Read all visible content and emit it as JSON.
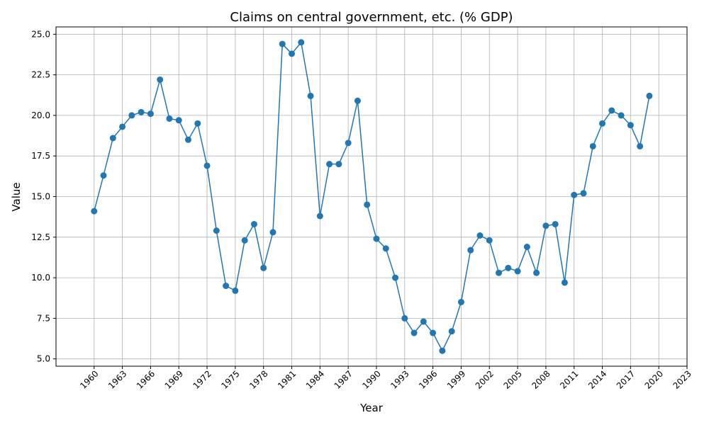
{
  "chart_data": {
    "type": "line",
    "title": "Claims on central government, etc. (% GDP)",
    "xlabel": "Year",
    "ylabel": "Value",
    "xlim": [
      1955.95,
      2023
    ],
    "ylim": [
      4.55,
      25.45
    ],
    "grid": true,
    "color": "#1f77b4",
    "x_ticks": [
      1960,
      1963,
      1966,
      1969,
      1972,
      1975,
      1978,
      1981,
      1984,
      1987,
      1990,
      1993,
      1996,
      1999,
      2002,
      2005,
      2008,
      2011,
      2014,
      2017,
      2020,
      2023
    ],
    "y_ticks": [
      5.0,
      7.5,
      10.0,
      12.5,
      15.0,
      17.5,
      20.0,
      22.5,
      25.0
    ],
    "y_tick_labels": [
      "5.0",
      "7.5",
      "10.0",
      "12.5",
      "15.0",
      "17.5",
      "20.0",
      "22.5",
      "25.0"
    ],
    "series": [
      {
        "x": [
          1960,
          1961,
          1962,
          1963,
          1964,
          1965,
          1966,
          1967,
          1968,
          1969,
          1970,
          1971,
          1972,
          1973,
          1974,
          1975,
          1976,
          1977,
          1978,
          1979,
          1980,
          1981,
          1982,
          1983,
          1984,
          1985,
          1986,
          1987,
          1988,
          1989,
          1990,
          1991,
          1992,
          1993,
          1994,
          1995,
          1996,
          1997,
          1998,
          1999,
          2000,
          2001,
          2002,
          2003,
          2004,
          2005,
          2006,
          2007,
          2008,
          2009,
          2010,
          2011,
          2012,
          2013,
          2014,
          2015,
          2016,
          2017,
          2018,
          2019
        ],
        "values": [
          14.1,
          16.3,
          18.6,
          19.3,
          20.0,
          20.2,
          20.1,
          22.2,
          19.8,
          19.7,
          18.5,
          19.5,
          16.9,
          12.9,
          9.5,
          9.2,
          12.3,
          13.3,
          10.6,
          12.8,
          24.4,
          23.8,
          24.5,
          21.2,
          13.8,
          17.0,
          17.0,
          18.3,
          20.9,
          14.5,
          12.4,
          11.8,
          10.0,
          7.5,
          6.6,
          7.3,
          6.6,
          5.5,
          6.7,
          8.5,
          11.7,
          12.6,
          12.3,
          10.3,
          10.6,
          10.4,
          11.9,
          10.3,
          13.2,
          13.3,
          9.7,
          15.1,
          15.2,
          18.1,
          19.5,
          20.3,
          20.0,
          19.4,
          18.1,
          21.2
        ]
      }
    ]
  }
}
